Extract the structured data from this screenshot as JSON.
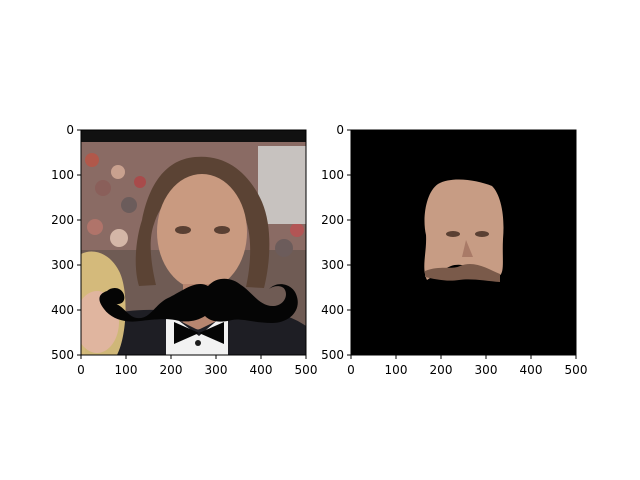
{
  "chart_data": [
    {
      "type": "image",
      "title": "",
      "xlabel": "",
      "ylabel": "",
      "xlim": [
        0,
        500
      ],
      "ylim": [
        500,
        0
      ],
      "xticks": [
        "0",
        "100",
        "200",
        "300",
        "400",
        "500"
      ],
      "yticks": [
        "0",
        "100",
        "200",
        "300",
        "400",
        "500"
      ],
      "content": "photo of a man in a tuxedo with a black mustache overlay",
      "colors": {
        "background_top": "#111111",
        "crowd": "#8a6a60",
        "hair": "#5b4334",
        "skin": "#c99a80",
        "mustache": "#050505",
        "shirt": "#f2f2f2",
        "tux": "#1e1e24"
      }
    },
    {
      "type": "image",
      "title": "",
      "xlabel": "",
      "ylabel": "",
      "xlim": [
        0,
        500
      ],
      "ylim": [
        500,
        0
      ],
      "xticks": [
        "0",
        "100",
        "200",
        "300",
        "400",
        "500"
      ],
      "yticks": [
        "0",
        "100",
        "200",
        "300",
        "400",
        "500"
      ],
      "content": "masked face region on black background",
      "colors": {
        "background": "#000000",
        "skin": "#c79c84",
        "shadow": "#7a5a4a"
      }
    }
  ]
}
